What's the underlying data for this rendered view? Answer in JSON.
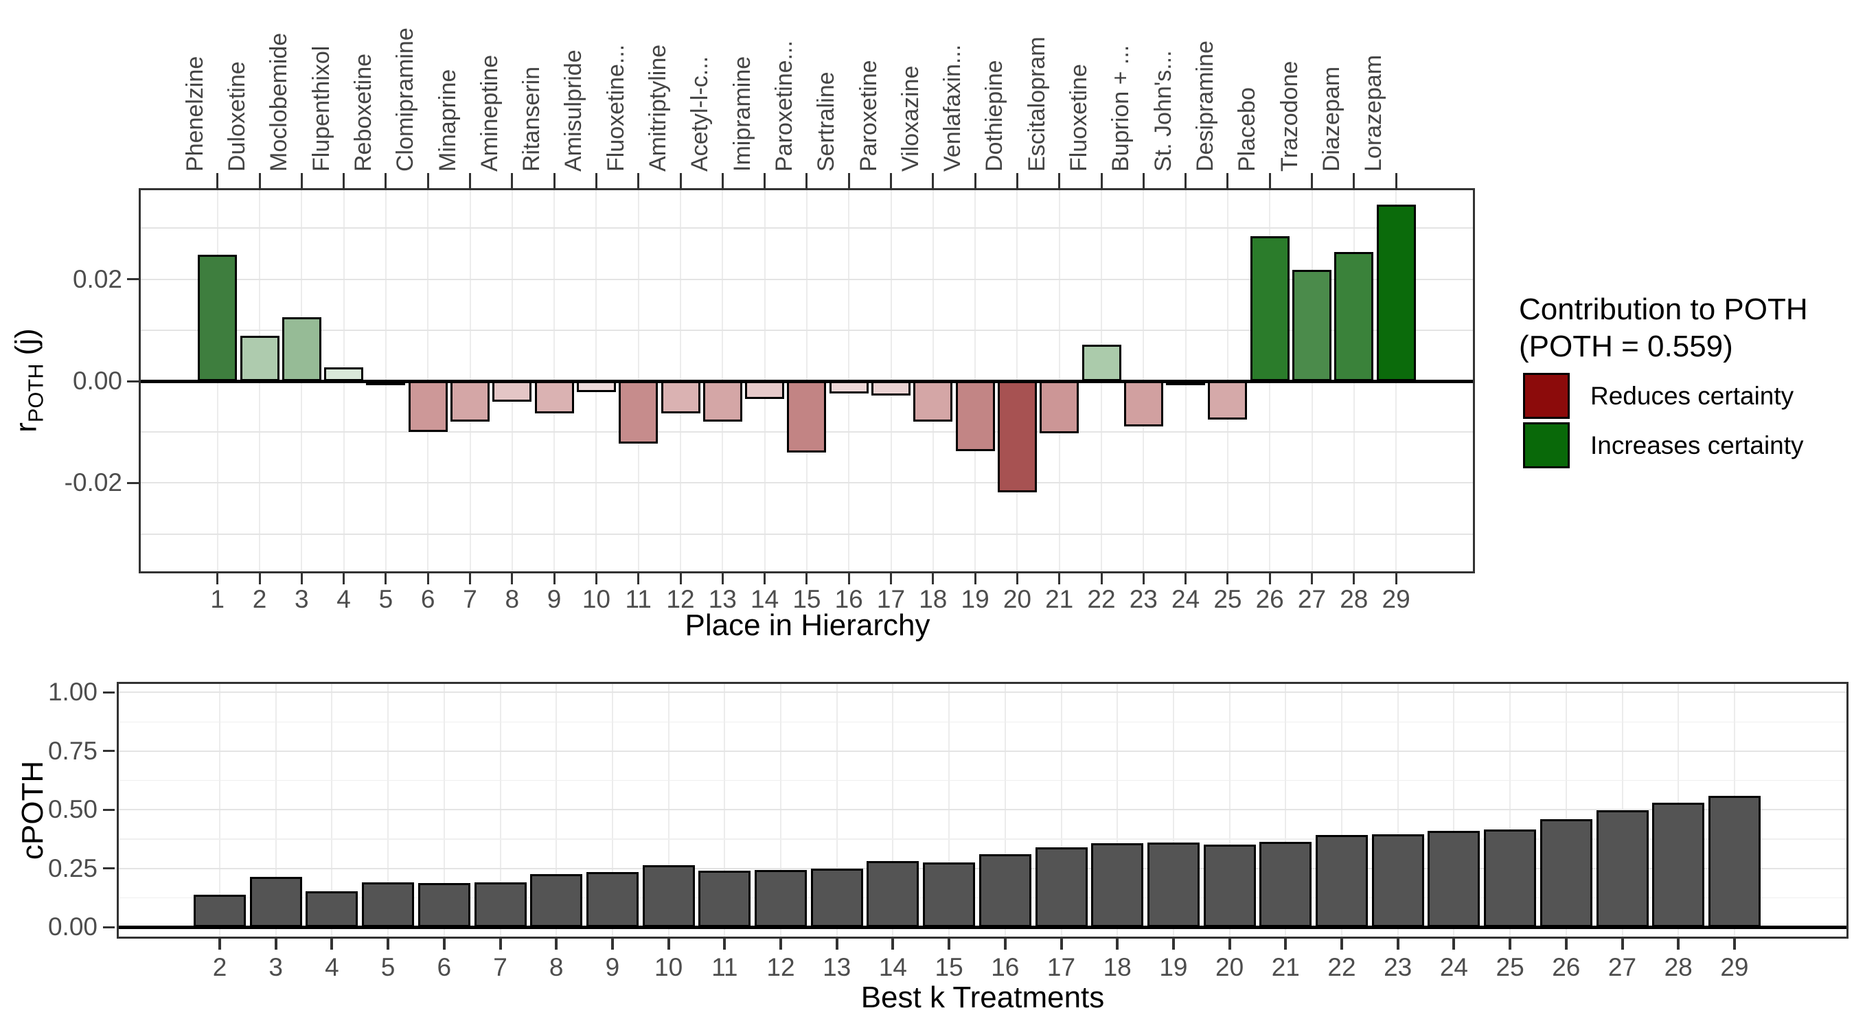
{
  "legend": {
    "title_line1": "Contribution to POTH",
    "title_line2": "(POTH = 0.559)",
    "items": [
      {
        "label": "Reduces certainty",
        "color": "#8C0B0B"
      },
      {
        "label": "Increases certainty",
        "color": "#096909"
      }
    ]
  },
  "chart_data": [
    {
      "type": "bar",
      "title": "",
      "xlabel": "Place in Hierarchy",
      "ylabel": "r_POTH (j)",
      "ylabel_main": "r",
      "ylabel_sub": "POTH",
      "ylabel_suffix": " (j)",
      "categories": [
        1,
        2,
        3,
        4,
        5,
        6,
        7,
        8,
        9,
        10,
        11,
        12,
        13,
        14,
        15,
        16,
        17,
        18,
        19,
        20,
        21,
        22,
        23,
        24,
        25,
        26,
        27,
        28,
        29
      ],
      "top_labels": [
        "Phenelzine",
        "Duloxetine",
        "Moclobemide",
        "Flupenthixol",
        "Reboxetine",
        "Clomipramine",
        "Minaprine",
        "Amineptine",
        "Ritanserin",
        "Amisulpride",
        "Fluoxetine...",
        "Amitriptyline",
        "Acetyl-l-c...",
        "Imipramine",
        "Paroxetine...",
        "Sertraline",
        "Paroxetine",
        "Viloxazine",
        "Venlafaxin...",
        "Dothiepine",
        "Escitalopram",
        "Fluoxetine",
        "Buprion + ...",
        "St. John's...",
        "Desipramine",
        "Placebo",
        "Trazodone",
        "Diazepam",
        "Lorazepam"
      ],
      "values": [
        0.0248,
        0.0089,
        0.0126,
        0.0027,
        -0.0003,
        -0.01,
        -0.008,
        -0.004,
        -0.0064,
        -0.0021,
        -0.0123,
        -0.0064,
        -0.008,
        -0.0035,
        -0.014,
        -0.0024,
        -0.0028,
        -0.008,
        -0.0138,
        -0.0218,
        -0.0103,
        0.0071,
        -0.0089,
        -0.0004,
        -0.0076,
        0.0284,
        0.0219,
        0.0254,
        0.0347
      ],
      "bar_colors": [
        "#3E7E3E",
        "#AECBAE",
        "#96BB96",
        "#D9E8D9",
        "#F6EFEF",
        "#CD9898",
        "#D4A6A6",
        "#E4C6C6",
        "#DAB2B2",
        "#EEDADA",
        "#C68C8C",
        "#DAB2B2",
        "#D4A6A6",
        "#E6CACA",
        "#C28484",
        "#ECD6D6",
        "#EAD2D2",
        "#D4A6A6",
        "#C28585",
        "#A75252",
        "#CC9696",
        "#ABCBAB",
        "#D1A0A0",
        "#F8F2F2",
        "#D5A9A9",
        "#2B7C2B",
        "#4B8B4B",
        "#3A823A",
        "#0B6B0B"
      ],
      "ytick_labels": [
        "0.02",
        "0.00",
        "-0.02"
      ],
      "ytick_values": [
        0.02,
        0.0,
        -0.02
      ],
      "grid_values": [
        0.03,
        0.02,
        0.01,
        -0.01,
        -0.02,
        -0.03
      ],
      "ylim": [
        -0.0377,
        0.0379
      ],
      "grid": "on",
      "legend_position": "right"
    },
    {
      "type": "bar",
      "title": "",
      "xlabel": "Best k Treatments",
      "ylabel": "cPOTH",
      "categories": [
        2,
        3,
        4,
        5,
        6,
        7,
        8,
        9,
        10,
        11,
        12,
        13,
        14,
        15,
        16,
        17,
        18,
        19,
        20,
        21,
        22,
        23,
        24,
        25,
        26,
        27,
        28,
        29
      ],
      "values": [
        0.137,
        0.215,
        0.151,
        0.19,
        0.187,
        0.19,
        0.224,
        0.234,
        0.263,
        0.239,
        0.242,
        0.249,
        0.281,
        0.276,
        0.31,
        0.339,
        0.356,
        0.361,
        0.351,
        0.363,
        0.392,
        0.395,
        0.41,
        0.417,
        0.46,
        0.497,
        0.529,
        0.559
      ],
      "bar_color": "#545454",
      "ytick_labels": [
        "1.00",
        "0.75",
        "0.50",
        "0.25",
        "0.00"
      ],
      "ytick_values": [
        1.0,
        0.75,
        0.5,
        0.25,
        0.0
      ],
      "grid_major": [
        1.0,
        0.75,
        0.5,
        0.25
      ],
      "grid_minor": [
        0.875,
        0.625,
        0.375,
        0.125
      ],
      "ylim": [
        -0.044,
        1.046
      ],
      "grid": "on"
    }
  ]
}
